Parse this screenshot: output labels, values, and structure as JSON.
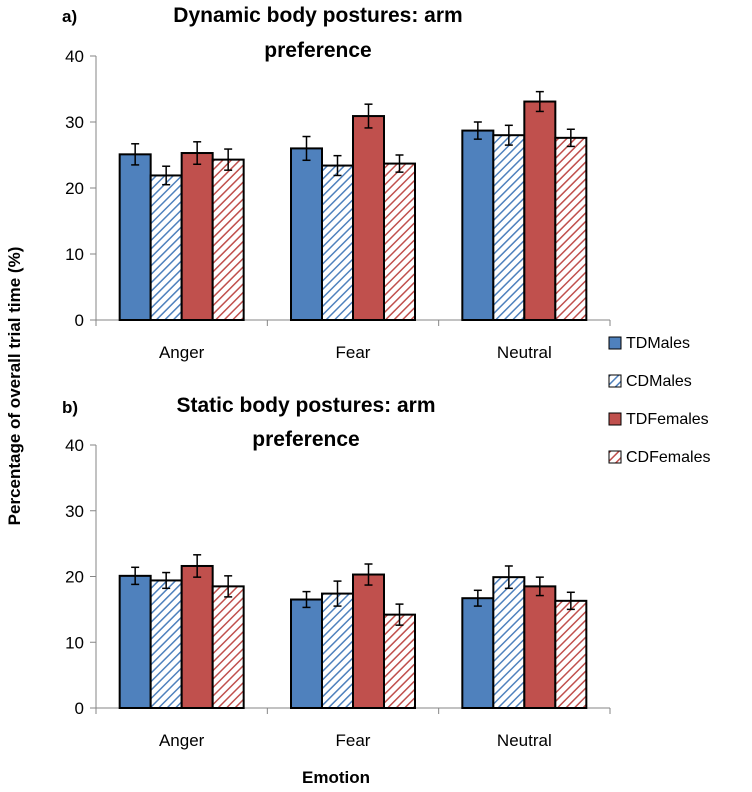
{
  "colors": {
    "TDMales": "#4f81bd",
    "CDMales": "#4f81bd",
    "TDFemales": "#c0504d",
    "CDFemales": "#c0504d"
  },
  "ylabel": "Percentage of overall trial time (%)",
  "xlabel": "Emotion",
  "legend": [
    "TDMales",
    "CDMales",
    "TDFemales",
    "CDFemales"
  ],
  "chart_data": [
    {
      "type": "bar",
      "panel_label": "a)",
      "title_lines": [
        "Dynamic body postures: arm",
        "preference"
      ],
      "categories": [
        "Anger",
        "Fear",
        "Neutral"
      ],
      "ylim": [
        0,
        40
      ],
      "yticks": [
        0,
        10,
        20,
        30,
        40
      ],
      "series": [
        {
          "name": "TDMales",
          "pattern": "solid",
          "values": [
            25.1,
            26.0,
            28.7
          ],
          "errors": [
            1.6,
            1.8,
            1.3
          ]
        },
        {
          "name": "CDMales",
          "pattern": "hatched",
          "values": [
            21.9,
            23.4,
            28.0
          ],
          "errors": [
            1.4,
            1.5,
            1.5
          ]
        },
        {
          "name": "TDFemales",
          "pattern": "solid",
          "values": [
            25.3,
            30.9,
            33.1
          ],
          "errors": [
            1.7,
            1.8,
            1.5
          ]
        },
        {
          "name": "CDFemales",
          "pattern": "hatched",
          "values": [
            24.3,
            23.7,
            27.6
          ],
          "errors": [
            1.6,
            1.3,
            1.3
          ]
        }
      ]
    },
    {
      "type": "bar",
      "panel_label": "b)",
      "title_lines": [
        "Static body postures: arm",
        "preference"
      ],
      "categories": [
        "Anger",
        "Fear",
        "Neutral"
      ],
      "ylim": [
        0,
        40
      ],
      "yticks": [
        0,
        10,
        20,
        30,
        40
      ],
      "series": [
        {
          "name": "TDMales",
          "pattern": "solid",
          "values": [
            20.1,
            16.5,
            16.7
          ],
          "errors": [
            1.3,
            1.2,
            1.2
          ]
        },
        {
          "name": "CDMales",
          "pattern": "hatched",
          "values": [
            19.4,
            17.4,
            19.9
          ],
          "errors": [
            1.2,
            1.9,
            1.7
          ]
        },
        {
          "name": "TDFemales",
          "pattern": "solid",
          "values": [
            21.6,
            20.3,
            18.5
          ],
          "errors": [
            1.7,
            1.6,
            1.4
          ]
        },
        {
          "name": "CDFemales",
          "pattern": "hatched",
          "values": [
            18.5,
            14.2,
            16.3
          ],
          "errors": [
            1.6,
            1.6,
            1.3
          ]
        }
      ]
    }
  ]
}
